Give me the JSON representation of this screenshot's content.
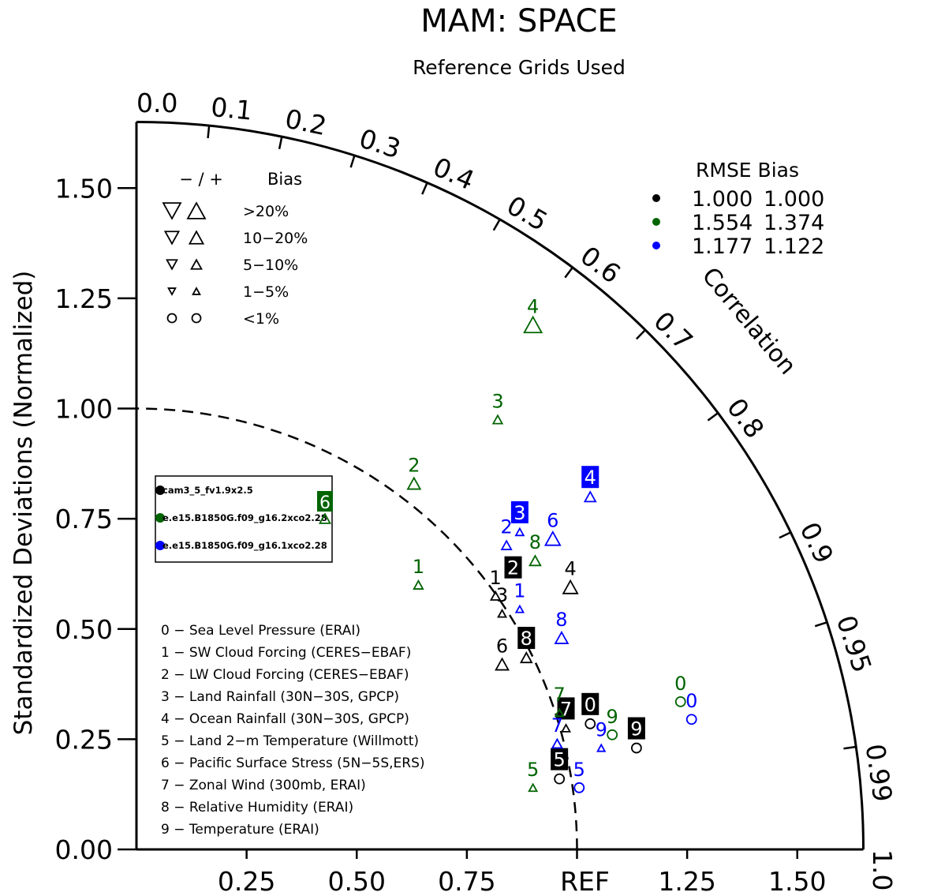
{
  "chart_data": {
    "type": "scatter",
    "title": "MAM: SPACE",
    "subtitle": "Reference Grids Used",
    "ylabel": "Standardized Deviations (Normalized)",
    "corr_label": "Correlation",
    "ylim": [
      0,
      1.65
    ],
    "xlim": [
      0,
      1.65
    ],
    "ref_label": "REF",
    "x_ticks": [
      "0.25",
      "0.50",
      "0.75",
      "1.50"
    ],
    "x_tick_values": [
      0.25,
      0.5,
      0.75,
      1.5
    ],
    "x_tick_extra": {
      "label": "1.25",
      "value": 1.25
    },
    "y_ticks": [
      "0.00",
      "0.25",
      "0.50",
      "0.75",
      "1.00",
      "1.25",
      "1.50"
    ],
    "y_tick_values": [
      0,
      0.25,
      0.5,
      0.75,
      1.0,
      1.25,
      1.5
    ],
    "corr_ticks": [
      "0.0",
      "0.1",
      "0.2",
      "0.3",
      "0.4",
      "0.5",
      "0.6",
      "0.7",
      "0.8",
      "0.9",
      "0.95",
      "0.99",
      "1.0"
    ],
    "corr_values": [
      0.0,
      0.1,
      0.2,
      0.3,
      0.4,
      0.5,
      0.6,
      0.7,
      0.8,
      0.9,
      0.95,
      0.99,
      1.0
    ],
    "bias_legend": {
      "header_sign": "−  /  +",
      "header_label": "Bias",
      "rows": [
        {
          "label": ">20%",
          "size": 1.0
        },
        {
          "label": "10−20%",
          "size": 0.78
        },
        {
          "label": "5−10%",
          "size": 0.58
        },
        {
          "label": "1−5%",
          "size": 0.4
        },
        {
          "label": "<1%",
          "size": 0
        }
      ]
    },
    "rmse_header": "RMSE  Bias",
    "series": [
      {
        "name": "cam3_5_fv1.9x2.5",
        "color": "#000000",
        "rmse": "1.000",
        "bias": "1.000"
      },
      {
        "name": "e.e15.B1850G.f09_g16.2xco2.28",
        "color": "#006400",
        "rmse": "1.554",
        "bias": "1.374"
      },
      {
        "name": "e.e15.B1850G.f09_g16.1xco2.28",
        "color": "#0000ff",
        "rmse": "1.177",
        "bias": "1.122"
      }
    ],
    "case_legend_marker": {
      "label": "6",
      "series": 1
    },
    "variables": [
      "0 − Sea Level Pressure (ERAI)",
      "1 − SW Cloud Forcing (CERES−EBAF)",
      "2 − LW Cloud Forcing (CERES−EBAF)",
      "3 − Land Rainfall (30N−30S, GPCP)",
      "4 − Ocean Rainfall (30N−30S, GPCP)",
      "5 − Land 2−m Temperature (Willmott)",
      "6 − Pacific Surface Stress (5N−5S,ERS)",
      "7 − Zonal Wind (300mb, ERAI)",
      "8 − Relative Humidity (ERAI)",
      "9 − Temperature (ERAI)"
    ],
    "points": [
      {
        "series": 0,
        "label": "0",
        "x": 1.03,
        "y": 0.285,
        "sym": "circle",
        "boxed": true
      },
      {
        "series": 0,
        "label": "1",
        "x": 0.815,
        "y": 0.575,
        "sym": "tri_up",
        "size": 0.52
      },
      {
        "series": 0,
        "label": "2",
        "x": 0.855,
        "y": 0.595,
        "sym": "none",
        "boxed": true
      },
      {
        "series": 0,
        "label": "3",
        "x": 0.83,
        "y": 0.535,
        "sym": "tri_up",
        "size": 0.45
      },
      {
        "series": 0,
        "label": "4",
        "x": 0.985,
        "y": 0.595,
        "sym": "tri_up",
        "size": 0.82
      },
      {
        "series": 0,
        "label": "5",
        "x": 0.96,
        "y": 0.16,
        "sym": "circle",
        "boxed": true
      },
      {
        "series": 0,
        "label": "6",
        "x": 0.83,
        "y": 0.42,
        "sym": "tri_up",
        "size": 0.72
      },
      {
        "series": 0,
        "label": "7",
        "x": 0.975,
        "y": 0.275,
        "sym": "tri_up",
        "size": 0.45,
        "boxed": true
      },
      {
        "series": 0,
        "label": "8",
        "x": 0.885,
        "y": 0.435,
        "sym": "tri_up",
        "size": 0.62,
        "boxed": true
      },
      {
        "series": 0,
        "label": "9",
        "x": 1.135,
        "y": 0.23,
        "sym": "circle",
        "boxed": true
      },
      {
        "series": 1,
        "label": "0",
        "x": 1.235,
        "y": 0.335,
        "sym": "circle"
      },
      {
        "series": 1,
        "label": "1",
        "x": 0.64,
        "y": 0.6,
        "sym": "tri_up",
        "size": 0.52
      },
      {
        "series": 1,
        "label": "2",
        "x": 0.63,
        "y": 0.83,
        "sym": "tri_up",
        "size": 0.72
      },
      {
        "series": 1,
        "label": "3",
        "x": 0.82,
        "y": 0.975,
        "sym": "tri_up",
        "size": 0.52
      },
      {
        "series": 1,
        "label": "4",
        "x": 0.9,
        "y": 1.19,
        "sym": "tri_up",
        "size": 1.0
      },
      {
        "series": 1,
        "label": "5",
        "x": 0.9,
        "y": 0.14,
        "sym": "tri_up",
        "size": 0.45
      },
      {
        "series": 1,
        "label": "7",
        "x": 0.96,
        "y": 0.31,
        "sym": "tri_up",
        "size": 0.45
      },
      {
        "series": 1,
        "label": "8",
        "x": 0.905,
        "y": 0.655,
        "sym": "tri_up",
        "size": 0.62
      },
      {
        "series": 1,
        "label": "9",
        "x": 1.08,
        "y": 0.26,
        "sym": "circle"
      },
      {
        "series": 2,
        "label": "0",
        "x": 1.26,
        "y": 0.295,
        "sym": "circle"
      },
      {
        "series": 2,
        "label": "1",
        "x": 0.87,
        "y": 0.545,
        "sym": "tri_up",
        "size": 0.42
      },
      {
        "series": 2,
        "label": "2",
        "x": 0.84,
        "y": 0.69,
        "sym": "tri_up",
        "size": 0.55
      },
      {
        "series": 2,
        "label": "3",
        "x": 0.87,
        "y": 0.72,
        "sym": "tri_up",
        "size": 0.45,
        "boxed": true
      },
      {
        "series": 2,
        "label": "4",
        "x": 1.03,
        "y": 0.8,
        "sym": "tri_up",
        "size": 0.62,
        "boxed": true
      },
      {
        "series": 2,
        "label": "5",
        "x": 1.005,
        "y": 0.14,
        "sym": "circle"
      },
      {
        "series": 2,
        "label": "6",
        "x": 0.945,
        "y": 0.705,
        "sym": "tri_up",
        "size": 0.85
      },
      {
        "series": 2,
        "label": "7",
        "x": 0.955,
        "y": 0.24,
        "sym": "tri_up",
        "size": 0.55
      },
      {
        "series": 2,
        "label": "8",
        "x": 0.965,
        "y": 0.48,
        "sym": "tri_up",
        "size": 0.72
      },
      {
        "series": 2,
        "label": "9",
        "x": 1.055,
        "y": 0.23,
        "sym": "tri_up",
        "size": 0.42
      }
    ]
  }
}
